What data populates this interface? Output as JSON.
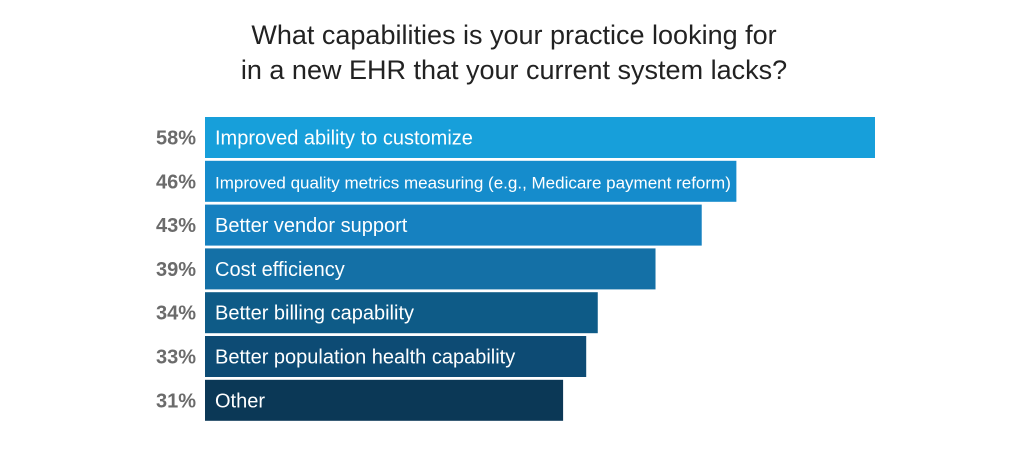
{
  "chart_data": {
    "type": "bar",
    "orientation": "horizontal",
    "title_lines": [
      "What capabilities is your practice looking for",
      "in a new EHR that your current system lacks?"
    ],
    "categories": [
      "Improved ability to customize",
      "Improved quality metrics measuring (e.g., Medicare payment reform)",
      "Better vendor support",
      "Cost efficiency",
      "Better billing capability",
      "Better population health capability",
      "Other"
    ],
    "values": [
      58,
      46,
      43,
      39,
      34,
      33,
      31
    ],
    "value_labels": [
      "58%",
      "46%",
      "43%",
      "39%",
      "34%",
      "33%",
      "31%"
    ],
    "bar_colors": [
      "#179fda",
      "#158ccc",
      "#1681c0",
      "#1470a6",
      "#0e5b87",
      "#0d4b74",
      "#0b3856"
    ],
    "label_color": "#6b6b6b",
    "grid": false,
    "legend": "none"
  }
}
